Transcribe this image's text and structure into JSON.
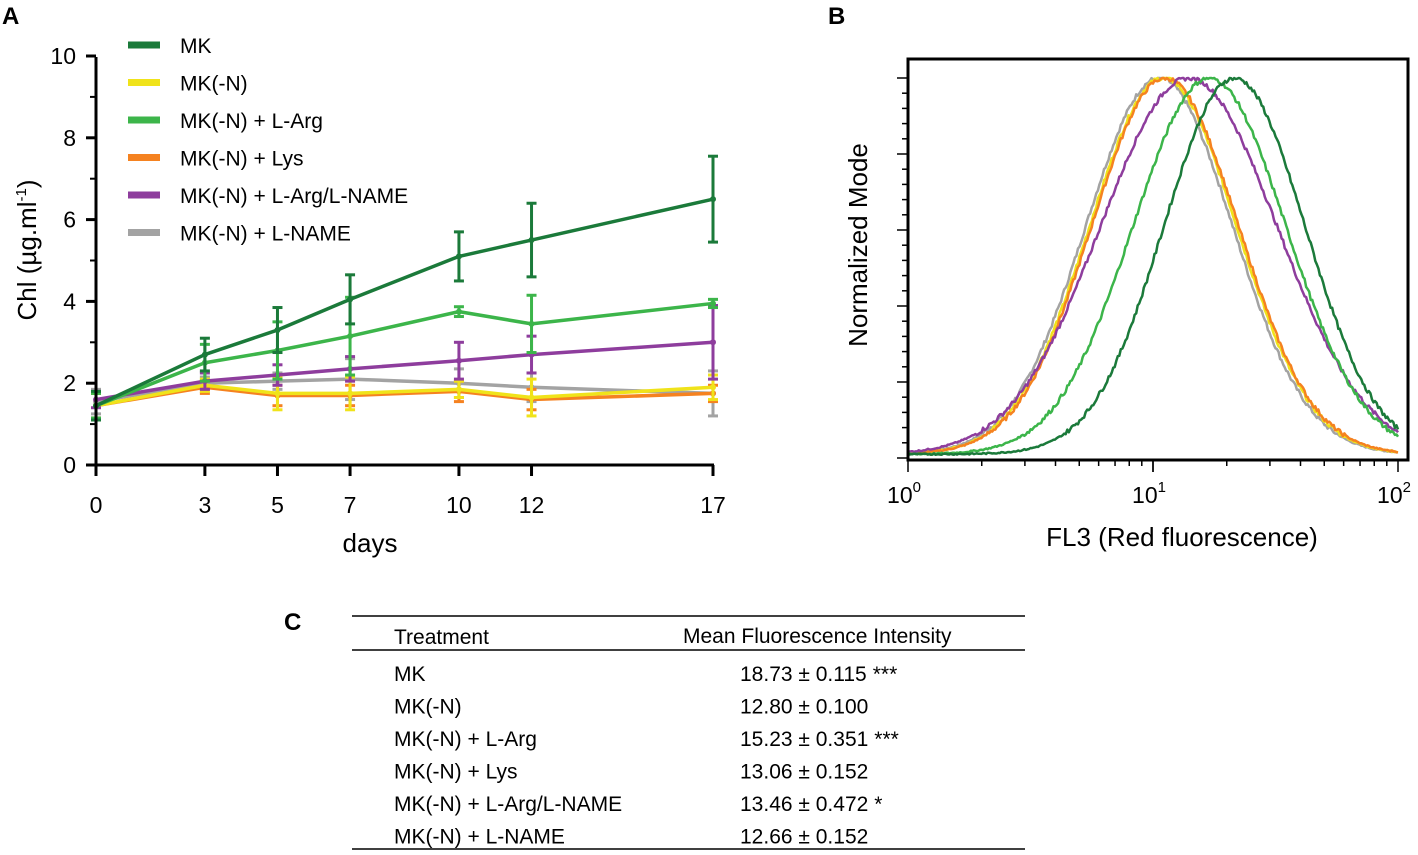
{
  "colors": {
    "MK": "#1b7a3a",
    "MK_N": "#f0e31a",
    "L_Arg": "#3cb54a",
    "Lys": "#f58220",
    "L_Arg_L_NAME": "#8e3d9d",
    "L_NAME": "#a3a3a3"
  },
  "panels": {
    "a": "A",
    "b": "B",
    "c": "C"
  },
  "chart_data": [
    {
      "type": "line",
      "title": "",
      "xlabel": "days",
      "ylabel": "Chl (µg.ml",
      "ylabel_sup": "-1",
      "ylabel_close": ")",
      "x": [
        0,
        3,
        5,
        7,
        10,
        12,
        17
      ],
      "xlim": [
        0,
        17
      ],
      "ylim": [
        0,
        10
      ],
      "yticks": [
        0,
        2,
        4,
        6,
        8,
        10
      ],
      "legend_position": "top-left",
      "series": [
        {
          "name": "MK",
          "color": "#1b7a3a",
          "values": [
            1.45,
            2.7,
            3.3,
            4.05,
            5.1,
            5.5,
            6.5
          ],
          "err": [
            0.35,
            0.4,
            0.55,
            0.6,
            0.6,
            0.9,
            1.05
          ]
        },
        {
          "name": "MK(-N)",
          "color": "#f0e31a",
          "values": [
            1.45,
            1.95,
            1.75,
            1.75,
            1.85,
            1.65,
            1.9
          ],
          "err": [
            0.3,
            0.15,
            0.4,
            0.4,
            0.2,
            0.45,
            0.3
          ]
        },
        {
          "name": "MK(-N) + L-Arg",
          "color": "#3cb54a",
          "values": [
            1.45,
            2.5,
            2.8,
            3.15,
            3.75,
            3.45,
            3.95
          ],
          "err": [
            0.3,
            0.45,
            0.7,
            0.95,
            0.12,
            0.7,
            0.1
          ]
        },
        {
          "name": "MK(-N) + Lys",
          "color": "#f58220",
          "values": [
            1.45,
            1.9,
            1.7,
            1.7,
            1.8,
            1.6,
            1.75
          ],
          "err": [
            0.3,
            0.15,
            0.25,
            0.25,
            0.25,
            0.25,
            0.2
          ]
        },
        {
          "name": "MK(-N) + L-Arg/L-NAME",
          "color": "#8e3d9d",
          "values": [
            1.6,
            2.05,
            2.2,
            2.35,
            2.55,
            2.7,
            3.0
          ],
          "err": [
            0.2,
            0.2,
            0.25,
            0.3,
            0.45,
            0.45,
            0.9
          ]
        },
        {
          "name": "MK(-N) + L-NAME",
          "color": "#a3a3a3",
          "values": [
            1.55,
            2.0,
            2.05,
            2.1,
            2.0,
            1.9,
            1.75
          ],
          "err": [
            0.3,
            0.15,
            0.2,
            0.5,
            0.35,
            0.35,
            0.55
          ]
        }
      ]
    },
    {
      "type": "line",
      "title": "",
      "xlabel": "FL3 (Red fluorescence)",
      "ylabel": "Normalized Mode",
      "xscale": "log",
      "xlim": [
        1,
        100
      ],
      "ylim": [
        0,
        1
      ],
      "xticks": [
        {
          "base": "10",
          "exp": "0"
        },
        {
          "base": "10",
          "exp": "1"
        },
        {
          "base": "10",
          "exp": "2"
        }
      ],
      "series": [
        {
          "name": "MK",
          "color": "#1b7a3a",
          "peak": 21.5,
          "sigma": 0.48
        },
        {
          "name": "MK(-N) + L-Arg",
          "color": "#3cb54a",
          "peak": 17.0,
          "sigma": 0.52
        },
        {
          "name": "MK(-N) + L-Arg/L-NAME",
          "color": "#8e3d9d",
          "peak": 14.0,
          "sigma": 0.6
        },
        {
          "name": "MK(-N) + Lys",
          "color": "#f58220",
          "peak": 11.2,
          "sigma": 0.5
        },
        {
          "name": "MK(-N)",
          "color": "#f0e31a",
          "peak": 11.0,
          "sigma": 0.5
        },
        {
          "name": "MK(-N) + L-NAME",
          "color": "#a3a3a3",
          "peak": 10.6,
          "sigma": 0.5
        }
      ]
    },
    {
      "type": "table",
      "columns": [
        "Treatment",
        "Mean Fluorescence Intensity"
      ],
      "rows": [
        {
          "treatment": "MK",
          "mfi": "18.73 ± 0.115",
          "sig": "***"
        },
        {
          "treatment": "MK(-N)",
          "mfi": "12.80 ± 0.100",
          "sig": ""
        },
        {
          "treatment": "MK(-N) + L-Arg",
          "mfi": "15.23 ± 0.351",
          "sig": "***"
        },
        {
          "treatment": "MK(-N) + Lys",
          "mfi": "13.06 ± 0.152",
          "sig": ""
        },
        {
          "treatment": "MK(-N) + L-Arg/L-NAME",
          "mfi": "13.46 ± 0.472",
          "sig": "*"
        },
        {
          "treatment": "MK(-N) + L-NAME",
          "mfi": "12.66 ± 0.152",
          "sig": ""
        }
      ]
    }
  ]
}
